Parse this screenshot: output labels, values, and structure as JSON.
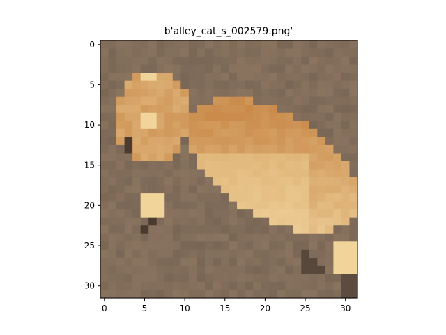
{
  "figure": {
    "title": "b'alley_cat_s_002579.png'"
  },
  "image": {
    "description": "32x32 pixelated photo of an orange tabby cat lying on brown ground",
    "grid_size": 32,
    "palette": {
      "ground": "#8a7460",
      "ground_dark": "#6e5d4d",
      "fur_orange": "#c98a4a",
      "fur_light": "#e3bb82",
      "fur_cream": "#f0d49a",
      "shadow": "#4a3a30"
    }
  },
  "axes": {
    "x_ticks": [
      "0",
      "5",
      "10",
      "15",
      "20",
      "25",
      "30"
    ],
    "y_ticks": [
      "0",
      "5",
      "10",
      "15",
      "20",
      "25",
      "30"
    ],
    "xlim": [
      -0.5,
      31.5
    ],
    "ylim": [
      31.5,
      -0.5
    ]
  }
}
